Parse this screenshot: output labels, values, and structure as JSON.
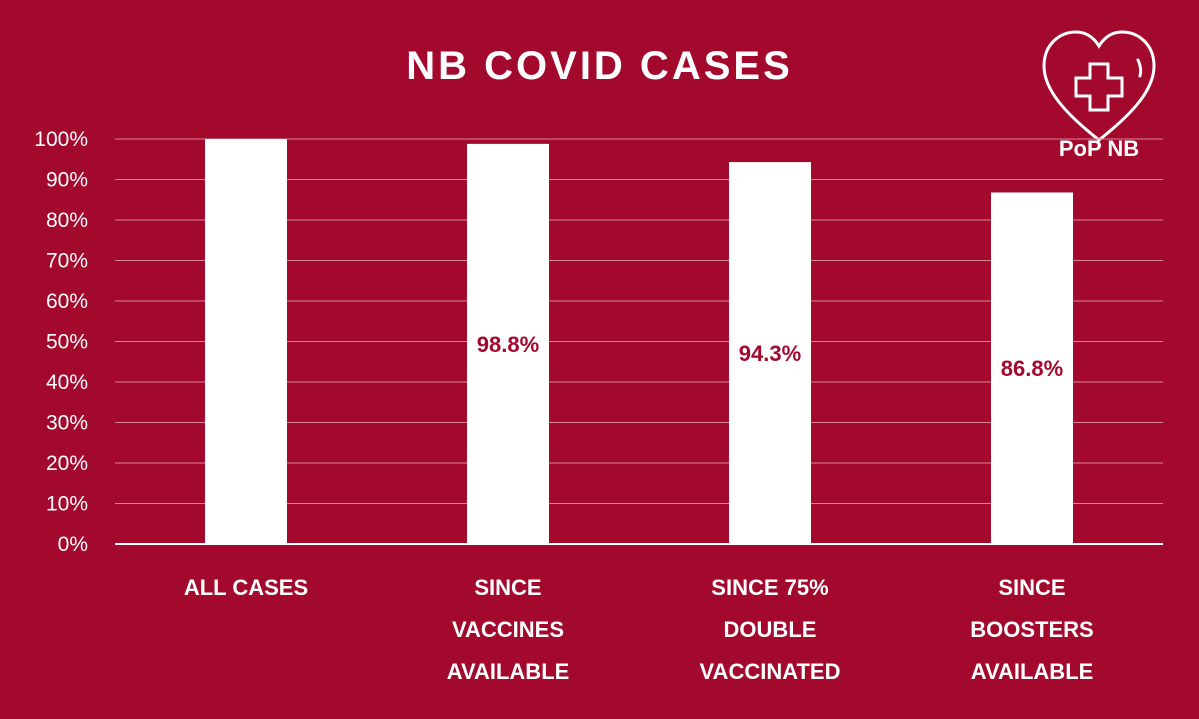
{
  "title": "NB COVID CASES",
  "logo": {
    "icon": "heart-cross-icon",
    "text": "PoP NB"
  },
  "colors": {
    "background": "#a3082d",
    "bar": "#ffffff",
    "label": "#a3082d",
    "grid": "#d98596"
  },
  "chart_data": {
    "type": "bar",
    "title": "NB COVID CASES",
    "categories": [
      [
        "ALL CASES"
      ],
      [
        "SINCE",
        "VACCINES",
        "AVAILABLE"
      ],
      [
        "SINCE 75%",
        "DOUBLE",
        "VACCINATED"
      ],
      [
        "SINCE",
        "BOOSTERS",
        "AVAILABLE"
      ]
    ],
    "values": [
      100,
      98.8,
      94.3,
      86.8
    ],
    "data_labels": [
      "",
      "98.8%",
      "94.3%",
      "86.8%"
    ],
    "yticks": [
      "0%",
      "10%",
      "20%",
      "30%",
      "40%",
      "50%",
      "60%",
      "70%",
      "80%",
      "90%",
      "100%"
    ],
    "ylim": [
      0,
      100
    ],
    "xlabel": "",
    "ylabel": "",
    "grid": true,
    "legend": "none"
  }
}
